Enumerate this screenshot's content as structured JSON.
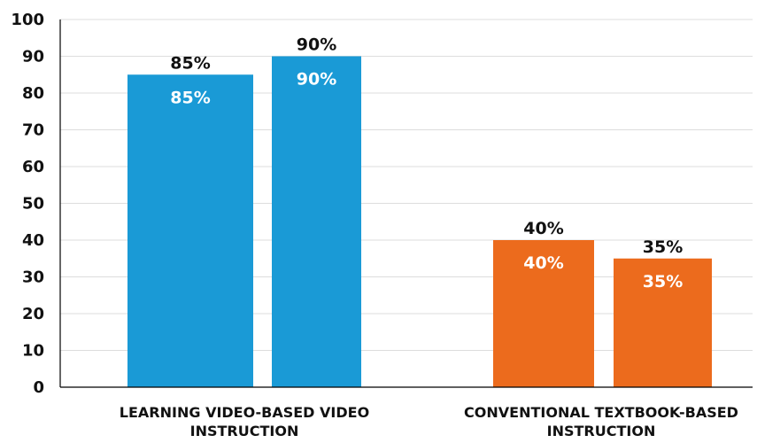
{
  "chart_data": {
    "type": "bar",
    "title": "",
    "xlabel": "",
    "ylabel": "",
    "ylim": [
      0,
      100
    ],
    "yticks": [
      0,
      10,
      20,
      30,
      40,
      50,
      60,
      70,
      80,
      90,
      100
    ],
    "grid": true,
    "categories": [
      {
        "label_lines": [
          "LEARNING VIDEO-BASED VIDEO",
          "INSTRUCTION"
        ],
        "color": "#1a9ad6",
        "bars": [
          {
            "value": 85,
            "label": "85%"
          },
          {
            "value": 90,
            "label": "90%"
          }
        ]
      },
      {
        "label_lines": [
          "CONVENTIONAL TEXTBOOK-BASED",
          "INSTRUCTION"
        ],
        "color": "#ec6b1d",
        "bars": [
          {
            "value": 40,
            "label": "40%"
          },
          {
            "value": 35,
            "label": "35%"
          }
        ]
      }
    ],
    "colors": {
      "grid": "#dddddd",
      "axis": "#000000",
      "text_dark": "#111111",
      "text_light": "#ffffff"
    }
  }
}
